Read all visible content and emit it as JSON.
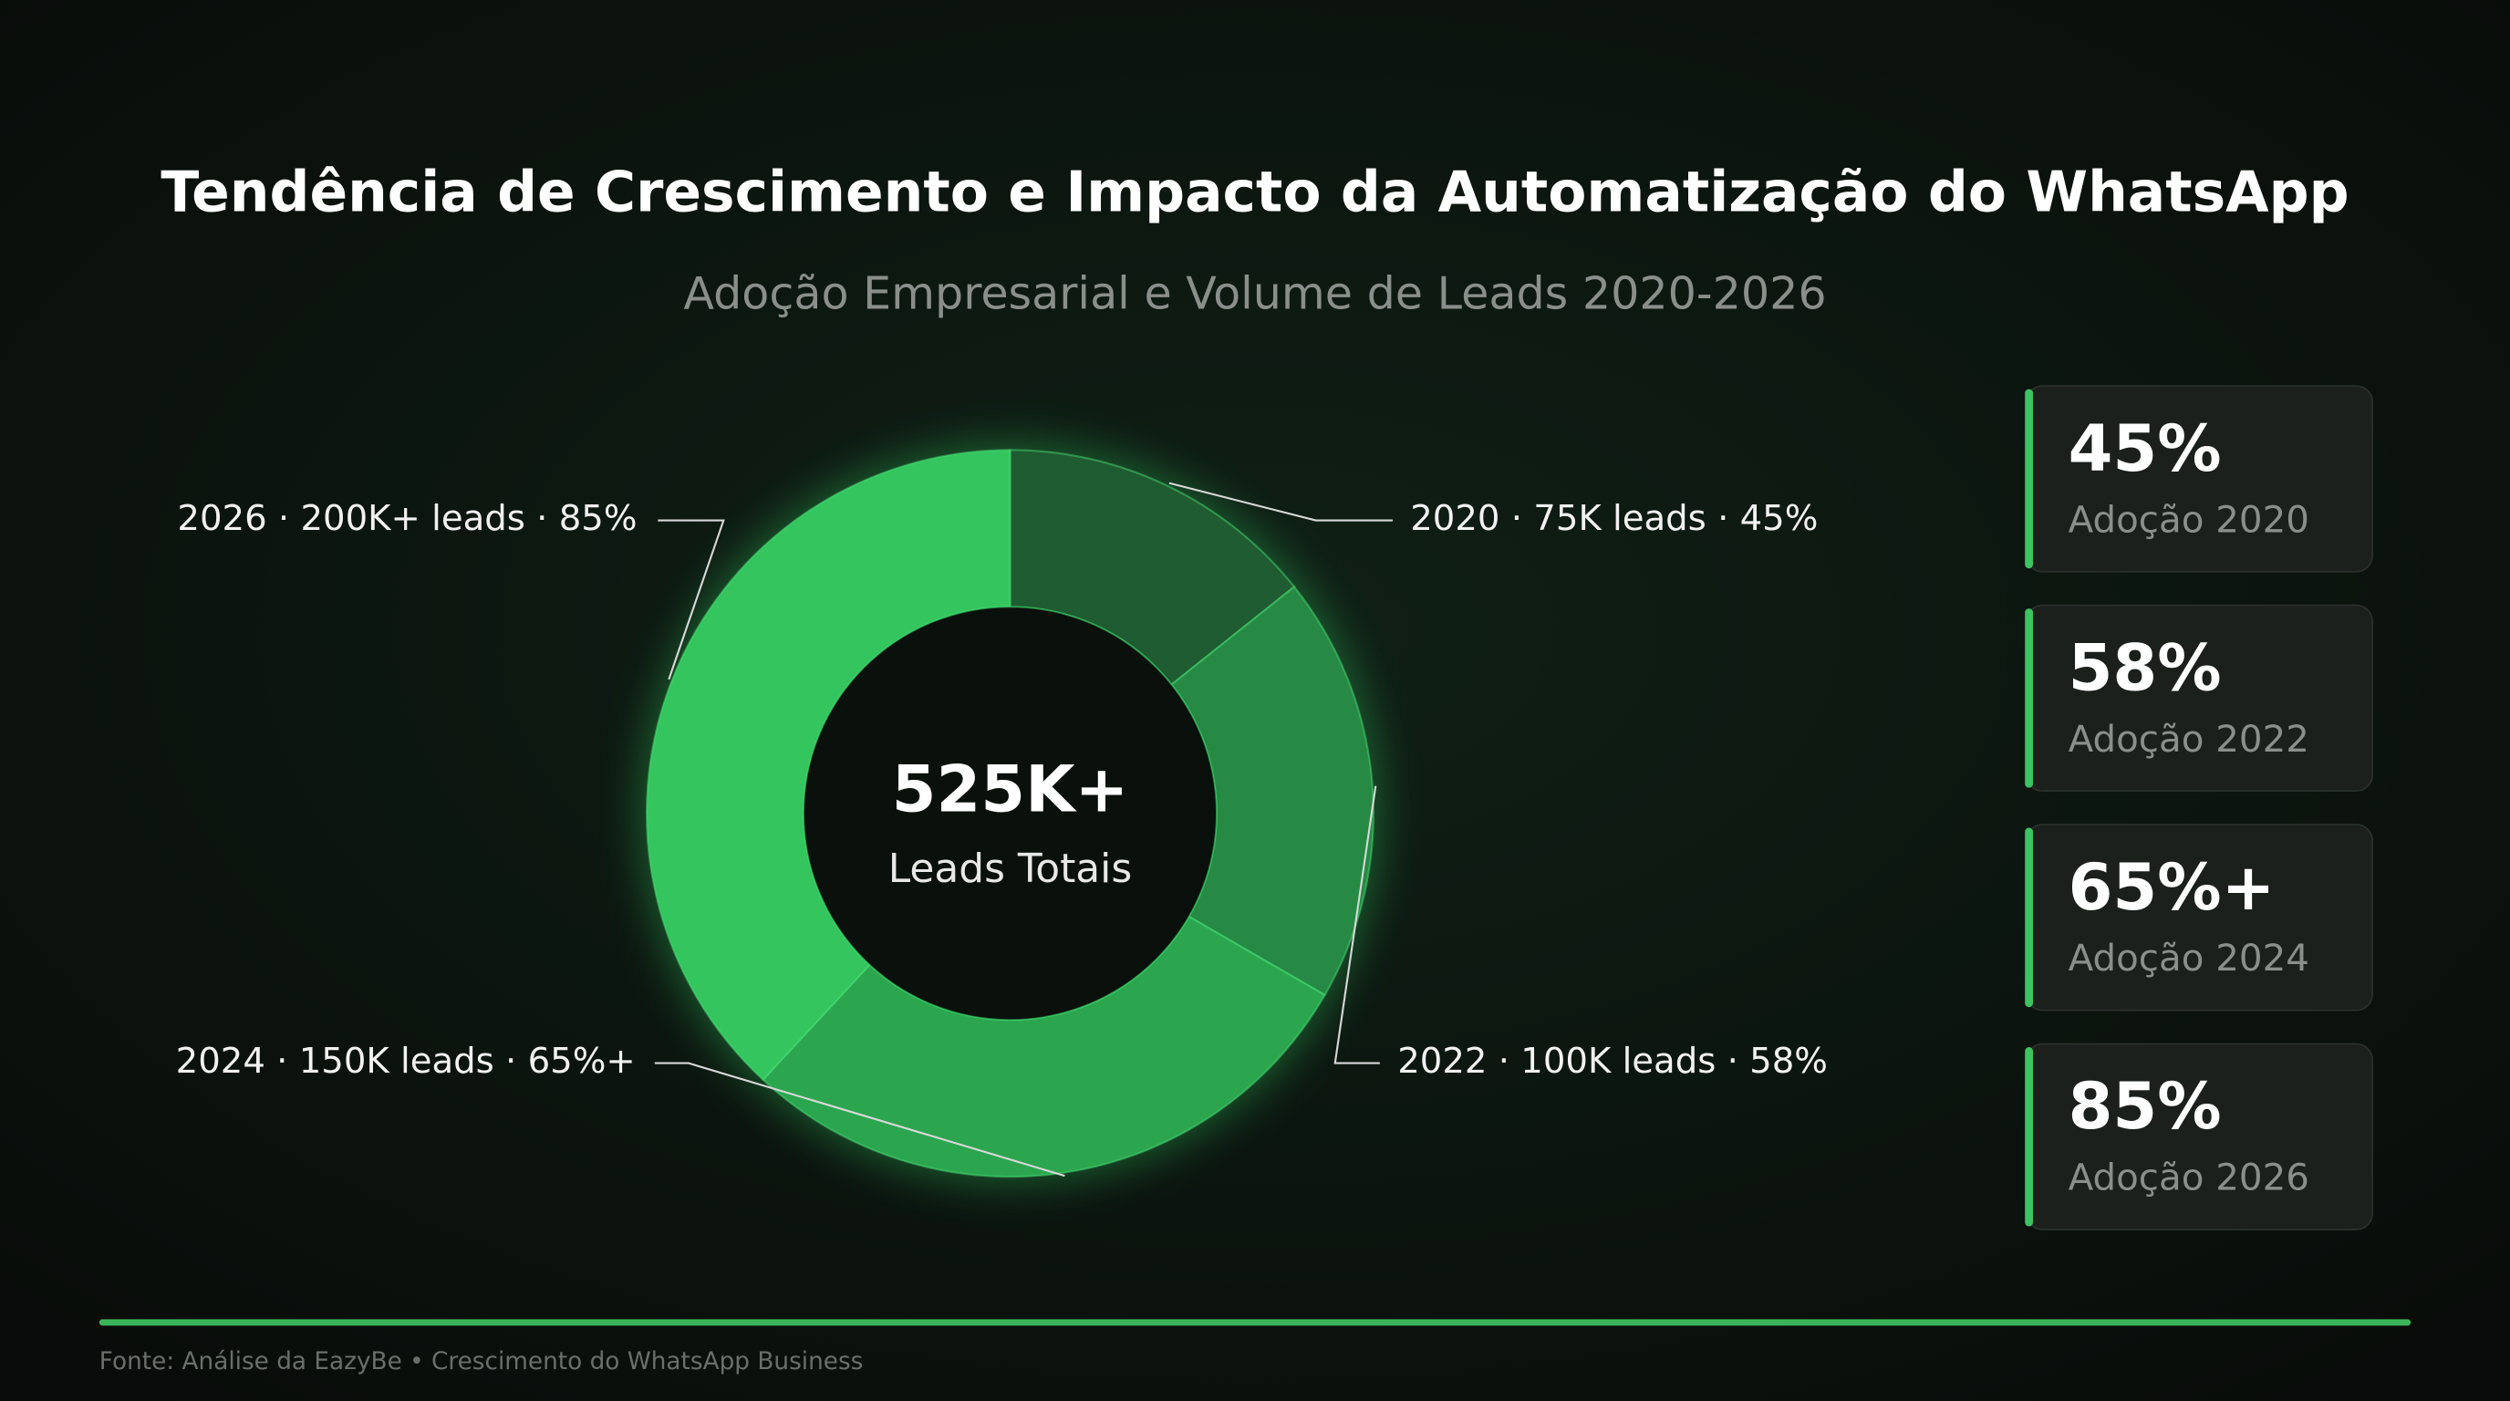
{
  "chart_data": {
    "type": "donut",
    "title": "Tendência de Crescimento e Impacto da Automatização do WhatsApp",
    "subtitle": "Adoção Empresarial e Volume de Leads 2020-2026",
    "categories": [
      "2020 · 75K leads · 45%",
      "2022 · 100K leads · 58%",
      "2024 · 150K leads · 65%+",
      "2026 · 200K+ leads · 85%"
    ],
    "values": [
      75000,
      100000,
      150000,
      200000
    ],
    "colors": [
      "#1f5c31",
      "#268a44",
      "#2ba64f",
      "#34c55f"
    ],
    "center_value": "525K+",
    "center_label": "Leads Totais"
  },
  "cards": [
    {
      "value": "45%",
      "label": "Adoção 2020"
    },
    {
      "value": "58%",
      "label": "Adoção 2022"
    },
    {
      "value": "65%+",
      "label": "Adoção 2024"
    },
    {
      "value": "85%",
      "label": "Adoção 2026"
    }
  ],
  "footer": "Fonte: Análise da EazyBe • Crescimento do WhatsApp Business"
}
